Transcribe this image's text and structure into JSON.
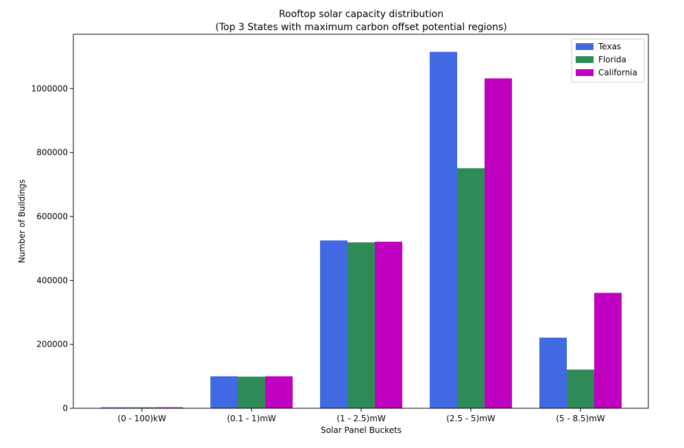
{
  "chart_data": {
    "type": "bar",
    "title": "Rooftop solar capacity distribution",
    "subtitle": "(Top 3 States with maximum carbon offset potential regions)",
    "xlabel": "Solar Panel Buckets",
    "ylabel": "Number of Buildings",
    "categories": [
      "(0 - 100)kW",
      "(0.1 - 1)mW",
      "(1 - 2.5)mW",
      "(2.5 - 5)mW",
      "(5 - 8.5)mW"
    ],
    "series": [
      {
        "name": "Texas",
        "color": "#4169e1",
        "values": [
          3000,
          100000,
          525000,
          1115000,
          221000
        ]
      },
      {
        "name": "Florida",
        "color": "#2e8b57",
        "values": [
          3000,
          99000,
          519000,
          751000,
          121000
        ]
      },
      {
        "name": "California",
        "color": "#bf00bf",
        "values": [
          3000,
          100000,
          521000,
          1032000,
          361000
        ]
      }
    ],
    "ylim": [
      0,
      1170000
    ],
    "yticks": [
      0,
      200000,
      400000,
      600000,
      800000,
      1000000
    ],
    "ytick_labels": [
      "0",
      "200000",
      "400000",
      "600000",
      "800000",
      "1000000"
    ],
    "grid": false,
    "legend_position": "top-right"
  }
}
